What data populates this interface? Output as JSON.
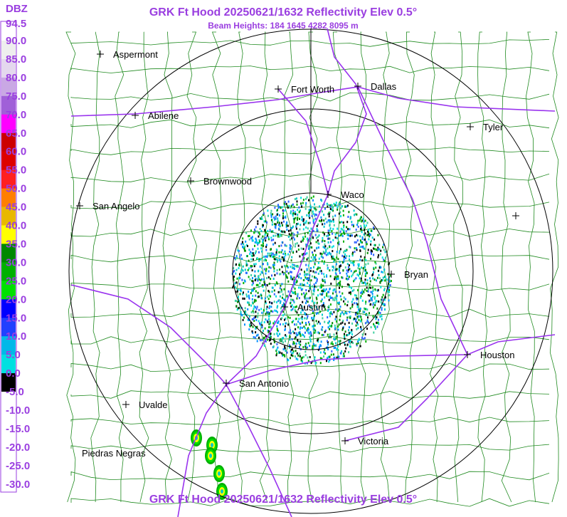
{
  "header": {
    "title": "GRK Ft Hood 20250621/1632 Reflectivity Elev 0.5°",
    "subtitle": "Beam Heights: 184 1645 4282 8095 m"
  },
  "legend": {
    "unit": "DBZ",
    "labels": [
      "94.5",
      "90.0",
      "85.0",
      "80.0",
      "75.0",
      "70.0",
      "65.0",
      "60.0",
      "55.0",
      "50.0",
      "45.0",
      "40.0",
      "35.0",
      "30.0",
      "25.0",
      "20.0",
      "15.0",
      "10.0",
      "5.0",
      "0.0",
      "-5.0",
      "-10.0",
      "-15.0",
      "-20.0",
      "-25.0",
      "-30.0"
    ],
    "colors": [
      "#ffffff",
      "#eeeeee",
      "#e4d8ee",
      "#c9a8e4",
      "#a060d8",
      "#ff00ff",
      "#cc0000",
      "#dd0000",
      "#ff2020",
      "#ff7f00",
      "#e8b800",
      "#ffff00",
      "#008800",
      "#00b000",
      "#00e000",
      "#0000ff",
      "#2040ff",
      "#00b8e8",
      "#00e0e0",
      "#000000",
      "#ffffff",
      "#ffffff",
      "#ffffff",
      "#ffffff",
      "#ffffff"
    ]
  },
  "cities": [
    "Aspermont",
    "Fort Worth",
    "Dallas",
    "Abilene",
    "Tyler",
    "Brownwood",
    "Waco",
    "San Angelo",
    "Bryan",
    "Austin",
    "Houston",
    "San Antonio",
    "Uvalde",
    "Victoria",
    "Piedras Negras"
  ],
  "footer": {
    "title": "GRK Ft Hood 20250621/1632 Reflectivity Elev 0.5°"
  }
}
